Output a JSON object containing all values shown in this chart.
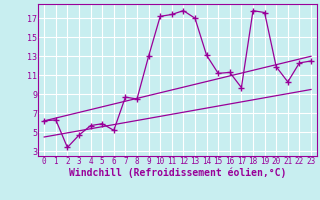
{
  "xlabel": "Windchill (Refroidissement éolien,°C)",
  "background_color": "#c8eef0",
  "grid_color": "#b0dde0",
  "line_color": "#990099",
  "xlim": [
    -0.5,
    23.5
  ],
  "ylim": [
    2.5,
    18.5
  ],
  "xticks": [
    0,
    1,
    2,
    3,
    4,
    5,
    6,
    7,
    8,
    9,
    10,
    11,
    12,
    13,
    14,
    15,
    16,
    17,
    18,
    19,
    20,
    21,
    22,
    23
  ],
  "yticks": [
    3,
    5,
    7,
    9,
    11,
    13,
    15,
    17
  ],
  "line1_x": [
    0,
    1,
    2,
    3,
    4,
    5,
    6,
    7,
    8,
    9,
    10,
    11,
    12,
    13,
    14,
    15,
    16,
    17,
    18,
    19,
    20,
    21,
    22,
    23
  ],
  "line1_y": [
    6.2,
    6.3,
    3.4,
    4.7,
    5.7,
    5.9,
    5.2,
    8.7,
    8.5,
    13.0,
    17.2,
    17.4,
    17.8,
    17.0,
    13.1,
    11.2,
    11.3,
    9.7,
    17.8,
    17.6,
    11.9,
    10.3,
    12.3,
    12.5
  ],
  "line2_x": [
    0,
    23
  ],
  "line2_y": [
    4.5,
    9.5
  ],
  "line3_x": [
    0,
    23
  ],
  "line3_y": [
    6.2,
    13.0
  ],
  "xlabel_fontsize": 7,
  "xtick_fontsize": 5.5,
  "ytick_fontsize": 6.0
}
